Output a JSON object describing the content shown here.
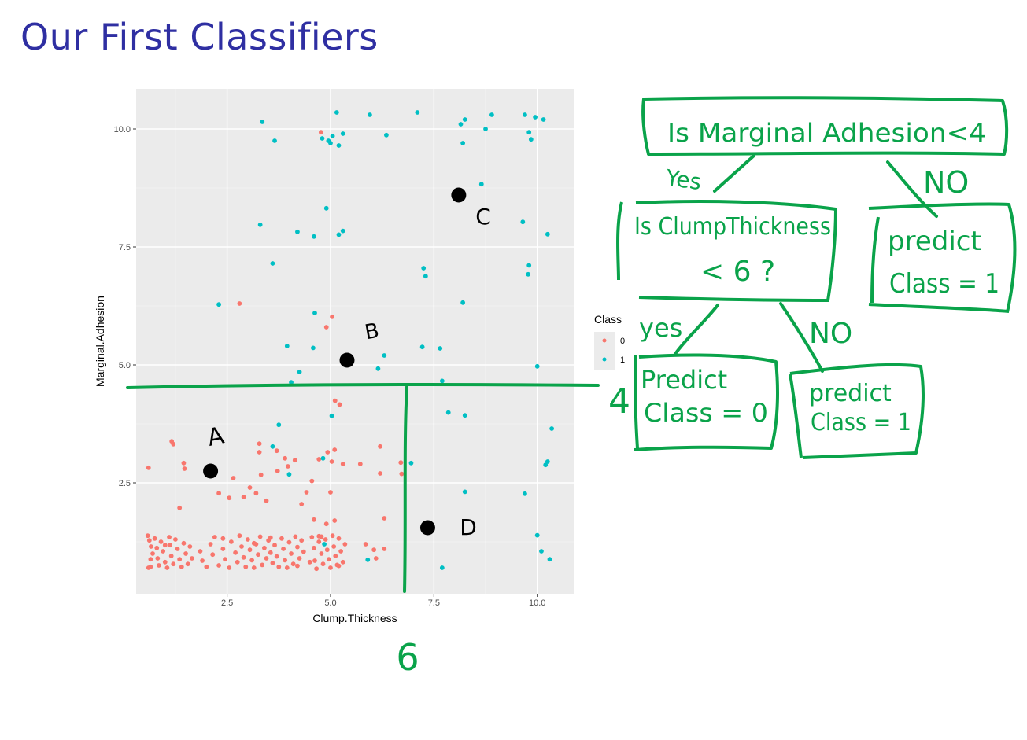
{
  "slide": {
    "title": "Our First Classifiers",
    "title_color": "#2f2fa2"
  },
  "colors": {
    "panel_bg": "#ebebeb",
    "grid": "#ffffff",
    "class0": "#f8766d",
    "class1": "#00bfc4",
    "annotation": "#0aa34a",
    "marker": "#000000",
    "axis_text": "#4d4d4d"
  },
  "chart_data": {
    "type": "scatter",
    "xlabel": "Clump.Thickness",
    "ylabel": "Marginal.Adhesion",
    "xlim": [
      0.3,
      10.9
    ],
    "ylim": [
      0.15,
      10.85
    ],
    "x_ticks": [
      2.5,
      5.0,
      7.5,
      10.0
    ],
    "x_tick_labels": [
      "2.5",
      "5.0",
      "7.5",
      "10.0"
    ],
    "y_ticks": [
      2.5,
      5.0,
      7.5,
      10.0
    ],
    "y_tick_labels": [
      "2.5",
      "5.0",
      "7.5",
      "10.0"
    ],
    "grid": true,
    "legend": {
      "title": "Class",
      "placement": "right",
      "entries": [
        {
          "label": "0",
          "color": "#f8766d"
        },
        {
          "label": "1",
          "color": "#00bfc4"
        }
      ]
    },
    "series": [
      {
        "name": "0",
        "points": [
          [
            4.77,
            9.93
          ],
          [
            4.9,
            5.8
          ],
          [
            5.04,
            6.02
          ],
          [
            5.11,
            4.24
          ],
          [
            5.22,
            4.16
          ],
          [
            5.1,
            3.2
          ],
          [
            4.93,
            3.15
          ],
          [
            4.72,
            3.0
          ],
          [
            5.03,
            2.95
          ],
          [
            5.3,
            2.9
          ],
          [
            5.72,
            2.9
          ],
          [
            6.2,
            3.27
          ],
          [
            6.2,
            2.7
          ],
          [
            6.3,
            1.75
          ],
          [
            6.72,
            2.69
          ],
          [
            6.7,
            2.93
          ],
          [
            5.0,
            2.3
          ],
          [
            1.16,
            3.38
          ],
          [
            1.2,
            3.32
          ],
          [
            0.6,
            2.82
          ],
          [
            1.45,
            2.92
          ],
          [
            1.47,
            2.8
          ],
          [
            1.35,
            1.97
          ],
          [
            2.2,
            2.72
          ],
          [
            2.3,
            2.28
          ],
          [
            2.55,
            2.18
          ],
          [
            2.65,
            2.6
          ],
          [
            2.9,
            2.2
          ],
          [
            3.05,
            2.4
          ],
          [
            3.2,
            2.28
          ],
          [
            3.28,
            3.15
          ],
          [
            3.28,
            3.33
          ],
          [
            3.32,
            2.67
          ],
          [
            3.45,
            2.12
          ],
          [
            3.7,
            3.18
          ],
          [
            3.72,
            2.75
          ],
          [
            3.9,
            3.02
          ],
          [
            3.97,
            2.85
          ],
          [
            4.14,
            2.98
          ],
          [
            4.3,
            2.05
          ],
          [
            4.42,
            2.3
          ],
          [
            4.55,
            2.54
          ],
          [
            4.6,
            1.72
          ],
          [
            4.72,
            1.37
          ],
          [
            4.78,
            1.36
          ],
          [
            4.9,
            1.63
          ],
          [
            5.1,
            1.7
          ],
          [
            2.8,
            6.3
          ],
          [
            0.58,
            1.38
          ],
          [
            0.62,
            1.28
          ],
          [
            0.66,
            1.15
          ],
          [
            0.7,
            1.0
          ],
          [
            0.65,
            0.88
          ],
          [
            0.6,
            0.7
          ],
          [
            0.75,
            1.32
          ],
          [
            0.8,
            1.12
          ],
          [
            0.82,
            0.9
          ],
          [
            0.85,
            0.75
          ],
          [
            0.9,
            1.25
          ],
          [
            0.95,
            1.05
          ],
          [
            1.0,
            0.82
          ],
          [
            1.05,
            0.7
          ],
          [
            1.1,
            1.35
          ],
          [
            1.12,
            1.18
          ],
          [
            1.15,
            0.95
          ],
          [
            1.2,
            0.78
          ],
          [
            1.25,
            1.3
          ],
          [
            1.3,
            1.1
          ],
          [
            1.35,
            0.88
          ],
          [
            1.4,
            0.72
          ],
          [
            1.45,
            1.22
          ],
          [
            1.5,
            1.0
          ],
          [
            1.55,
            0.78
          ],
          [
            1.6,
            1.15
          ],
          [
            1.65,
            0.9
          ],
          [
            1.85,
            1.05
          ],
          [
            1.9,
            0.85
          ],
          [
            2.0,
            0.72
          ],
          [
            2.1,
            1.2
          ],
          [
            2.15,
            0.98
          ],
          [
            2.2,
            1.35
          ],
          [
            2.3,
            0.75
          ],
          [
            2.4,
            1.1
          ],
          [
            2.45,
            0.88
          ],
          [
            2.55,
            0.7
          ],
          [
            2.6,
            1.25
          ],
          [
            2.7,
            1.02
          ],
          [
            2.75,
            0.82
          ],
          [
            2.8,
            1.38
          ],
          [
            2.85,
            1.15
          ],
          [
            2.9,
            0.92
          ],
          [
            2.95,
            0.72
          ],
          [
            3.0,
            1.3
          ],
          [
            3.05,
            1.08
          ],
          [
            3.1,
            0.86
          ],
          [
            3.15,
            0.7
          ],
          [
            3.2,
            1.2
          ],
          [
            3.25,
            0.98
          ],
          [
            3.3,
            1.36
          ],
          [
            3.35,
            0.76
          ],
          [
            3.4,
            1.12
          ],
          [
            3.45,
            0.9
          ],
          [
            3.5,
            1.28
          ],
          [
            3.55,
            1.02
          ],
          [
            3.6,
            0.8
          ],
          [
            3.65,
            1.18
          ],
          [
            3.7,
            0.94
          ],
          [
            3.75,
            0.72
          ],
          [
            3.82,
            1.32
          ],
          [
            3.86,
            1.1
          ],
          [
            3.9,
            0.86
          ],
          [
            3.95,
            0.7
          ],
          [
            4.0,
            1.24
          ],
          [
            4.05,
            1.0
          ],
          [
            4.1,
            0.78
          ],
          [
            4.15,
            1.36
          ],
          [
            4.2,
            1.14
          ],
          [
            4.25,
            0.9
          ],
          [
            4.3,
            1.28
          ],
          [
            4.35,
            1.04
          ],
          [
            4.55,
            1.35
          ],
          [
            4.6,
            1.12
          ],
          [
            4.62,
            0.85
          ],
          [
            4.66,
            0.68
          ],
          [
            4.72,
            1.25
          ],
          [
            4.78,
            1.0
          ],
          [
            4.82,
            0.78
          ],
          [
            4.88,
            1.3
          ],
          [
            4.92,
            1.08
          ],
          [
            4.96,
            0.88
          ],
          [
            5.0,
            0.7
          ],
          [
            5.05,
            1.38
          ],
          [
            5.08,
            1.15
          ],
          [
            5.12,
            0.95
          ],
          [
            5.16,
            0.76
          ],
          [
            5.2,
            1.32
          ],
          [
            5.25,
            1.05
          ],
          [
            5.3,
            0.82
          ],
          [
            5.35,
            1.2
          ],
          [
            5.85,
            1.2
          ],
          [
            6.05,
            1.08
          ],
          [
            6.1,
            0.9
          ],
          [
            6.3,
            1.1
          ],
          [
            0.65,
            0.72
          ],
          [
            1.0,
            1.18
          ],
          [
            2.4,
            1.32
          ],
          [
            3.15,
            1.22
          ],
          [
            3.55,
            1.34
          ],
          [
            4.2,
            0.74
          ],
          [
            4.5,
            0.82
          ],
          [
            5.2,
            0.74
          ]
        ]
      },
      {
        "name": "1",
        "points": [
          [
            3.35,
            10.15
          ],
          [
            3.65,
            9.75
          ],
          [
            4.8,
            9.8
          ],
          [
            4.95,
            9.75
          ],
          [
            5.0,
            9.7
          ],
          [
            5.05,
            9.85
          ],
          [
            5.15,
            10.35
          ],
          [
            5.2,
            9.65
          ],
          [
            5.3,
            9.9
          ],
          [
            5.95,
            10.3
          ],
          [
            6.35,
            9.87
          ],
          [
            7.1,
            10.35
          ],
          [
            8.15,
            10.1
          ],
          [
            8.25,
            10.2
          ],
          [
            8.2,
            9.7
          ],
          [
            8.75,
            10.0
          ],
          [
            8.9,
            10.3
          ],
          [
            9.7,
            10.3
          ],
          [
            9.8,
            9.93
          ],
          [
            9.85,
            9.78
          ],
          [
            9.95,
            10.25
          ],
          [
            10.15,
            10.2
          ],
          [
            8.65,
            8.83
          ],
          [
            4.9,
            8.32
          ],
          [
            3.3,
            7.97
          ],
          [
            4.2,
            7.82
          ],
          [
            4.6,
            7.72
          ],
          [
            5.2,
            7.76
          ],
          [
            5.3,
            7.84
          ],
          [
            9.65,
            8.03
          ],
          [
            10.25,
            7.77
          ],
          [
            3.6,
            7.15
          ],
          [
            7.25,
            7.05
          ],
          [
            7.3,
            6.88
          ],
          [
            9.8,
            7.11
          ],
          [
            9.78,
            6.92
          ],
          [
            2.3,
            6.28
          ],
          [
            8.2,
            6.32
          ],
          [
            4.62,
            6.1
          ],
          [
            3.95,
            5.4
          ],
          [
            4.58,
            5.36
          ],
          [
            6.3,
            5.2
          ],
          [
            7.22,
            5.38
          ],
          [
            7.65,
            5.35
          ],
          [
            6.15,
            4.92
          ],
          [
            4.25,
            4.85
          ],
          [
            4.05,
            4.63
          ],
          [
            7.7,
            4.66
          ],
          [
            10.0,
            4.97
          ],
          [
            5.03,
            3.92
          ],
          [
            7.85,
            3.99
          ],
          [
            8.25,
            3.93
          ],
          [
            3.75,
            3.73
          ],
          [
            10.35,
            3.65
          ],
          [
            3.6,
            3.27
          ],
          [
            4.82,
            3.02
          ],
          [
            6.95,
            2.92
          ],
          [
            10.25,
            2.95
          ],
          [
            10.2,
            2.88
          ],
          [
            4.0,
            2.68
          ],
          [
            8.25,
            2.31
          ],
          [
            9.7,
            2.27
          ],
          [
            10.0,
            1.39
          ],
          [
            4.85,
            1.2
          ],
          [
            5.9,
            0.87
          ],
          [
            10.1,
            1.05
          ],
          [
            10.3,
            0.88
          ],
          [
            7.7,
            0.7
          ]
        ]
      }
    ],
    "highlighted_points": [
      {
        "label": "A",
        "x": 2.1,
        "y": 2.75
      },
      {
        "label": "B",
        "x": 5.4,
        "y": 5.1
      },
      {
        "label": "C",
        "x": 8.1,
        "y": 8.6
      },
      {
        "label": "D",
        "x": 7.35,
        "y": 1.55
      }
    ],
    "split_lines": [
      {
        "axis": "y",
        "value": 4.6,
        "label": "4"
      },
      {
        "axis": "x",
        "value": 6.8,
        "label": "6"
      }
    ]
  },
  "tree": {
    "root": "Is Marginal Adhesion<4",
    "left_edge": "Yes",
    "right_edge": "NO",
    "inner_line1": "Is ClumpThickness",
    "inner_line2": "< 6 ?",
    "leaf_right_line1": "predict",
    "leaf_right_line2": "Class = 1",
    "inner_left_edge": "yes",
    "inner_right_edge": "NO",
    "leaf_a_line1": "Predict",
    "leaf_a_line2": "Class = 0",
    "leaf_b_line1": "predict",
    "leaf_b_line2": "Class = 1"
  }
}
